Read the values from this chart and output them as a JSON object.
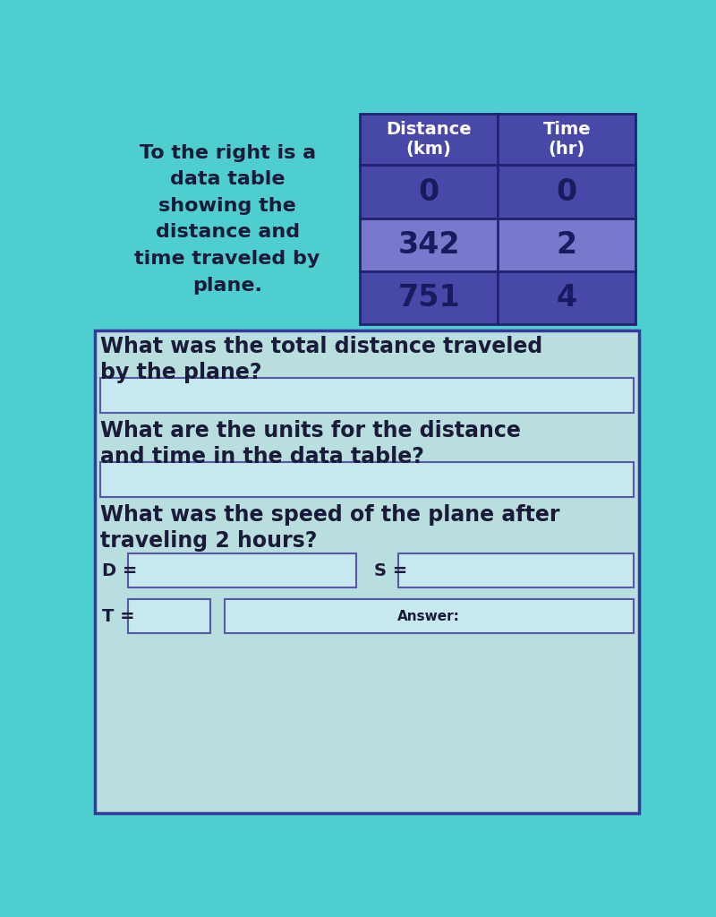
{
  "bg_color": "#4ecece",
  "table_bg_dark": "#4848a8",
  "table_bg_mid": "#6060bb",
  "table_bg_light": "#7878cc",
  "left_text_color": "#1a1a3a",
  "question_bg": "#b8dede",
  "question_border": "#3838a0",
  "answer_box_bg": "#c8e8f0",
  "answer_box_border": "#5858a8",
  "left_text": "To the right is a\ndata table\nshowing the\ndistance and\ntime traveled by\nplane.",
  "col1_header": "Distance\n(km)",
  "col2_header": "Time\n(hr)",
  "table_data": [
    [
      "0",
      "0"
    ],
    [
      "342",
      "2"
    ],
    [
      "751",
      "4"
    ]
  ],
  "q1": "What was the total distance traveled\nby the plane?",
  "q2": "What are the units for the distance\nand time in the data table?",
  "q3": "What was the speed of the plane after\ntraveling 2 hours?",
  "d_label": "D =",
  "t_label": "T =",
  "s_label": "S =",
  "answer_label": "Answer:"
}
